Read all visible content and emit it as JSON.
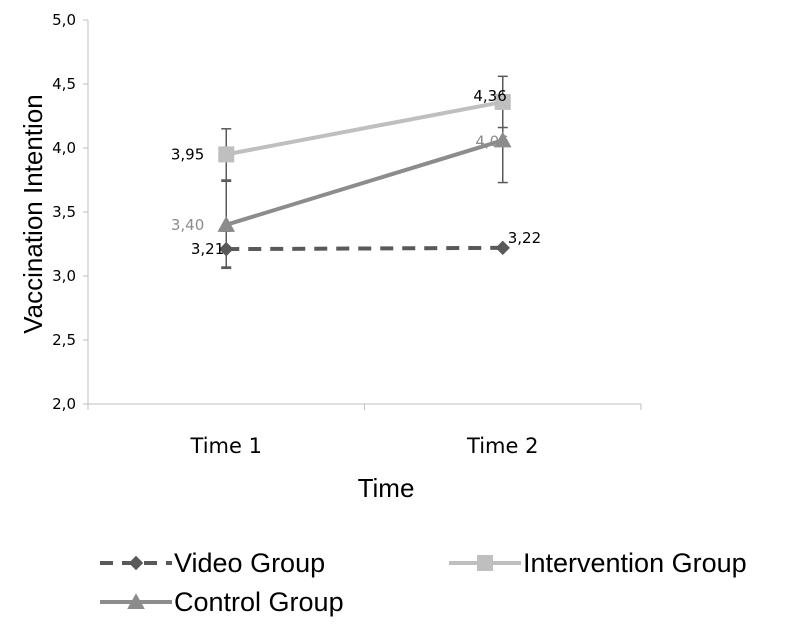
{
  "chart_data": {
    "type": "line",
    "xlabel": "Time",
    "ylabel": "Vaccination Intention",
    "categories": [
      "Time 1",
      "Time 2"
    ],
    "ylim": [
      2.0,
      5.0
    ],
    "yticks": [
      "2,0",
      "2,5",
      "3,0",
      "3,5",
      "4,0",
      "4,5",
      "5,0"
    ],
    "grid": false,
    "legend_position": "bottom",
    "series": [
      {
        "name": "Video Group",
        "values": [
          3.21,
          3.22
        ],
        "labels": [
          "3,21",
          "3,22"
        ],
        "error": [
          0.14,
          0.0
        ],
        "color": "#595959",
        "label_color": "#000000",
        "dash": true,
        "marker": "diamond"
      },
      {
        "name": "Intervention Group",
        "values": [
          3.95,
          4.36
        ],
        "labels": [
          "3,95",
          "4,36"
        ],
        "error": [
          0.2,
          0.2
        ],
        "color": "#bfbfbf",
        "label_color": "#000000",
        "dash": false,
        "marker": "square"
      },
      {
        "name": "Control Group",
        "values": [
          3.4,
          4.06
        ],
        "labels": [
          "3,40",
          "4,06"
        ],
        "error": [
          0.34,
          0.33
        ],
        "color": "#8c8c8c",
        "label_color": "#8c8c8c",
        "dash": false,
        "marker": "triangle"
      }
    ]
  }
}
